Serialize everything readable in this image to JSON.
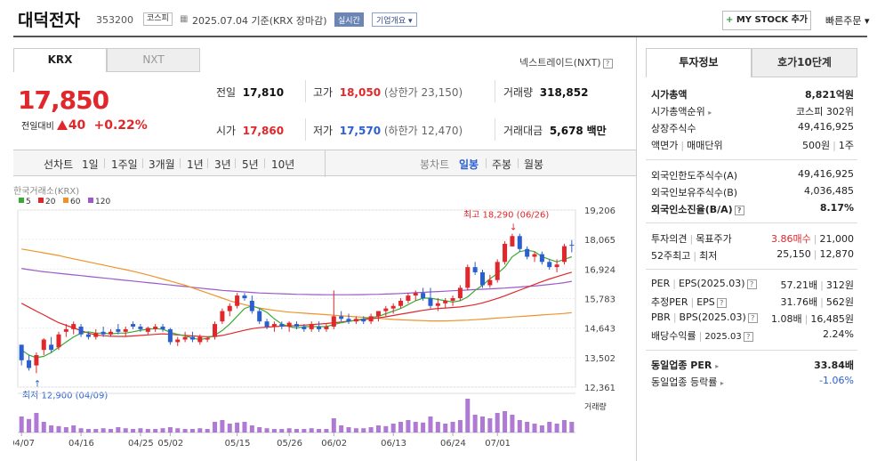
{
  "header": {
    "name": "대덕전자",
    "code": "353200",
    "market": "코스피",
    "date": "2025.07.04 기준(KRX 장마감)",
    "realtime": "실시간",
    "overview": "기업개요 ▾",
    "mystock": "MY STOCK 추가",
    "mystock_plus": "+",
    "quick_order": "빠른주문 ▾"
  },
  "tabs": {
    "krx": "KRX",
    "nxt": "NXT"
  },
  "nxt_link": "넥스트레이드(NXT)",
  "price": {
    "current": "17,850",
    "change_label": "전일대비",
    "change": "40",
    "change_pct": "+0.22%"
  },
  "quote": {
    "prev_label": "전일",
    "prev": "17,810",
    "high_label": "고가",
    "high": "18,050",
    "upper_label": "(상한가 23,150)",
    "volume_label": "거래량",
    "volume": "318,852",
    "open_label": "시가",
    "open": "17,860",
    "low_label": "저가",
    "low": "17,570",
    "lower_label": "(하한가 12,470)",
    "amount_label": "거래대금",
    "amount": "5,678",
    "amount_unit": "백만"
  },
  "chart_toolbar": {
    "line_chart": "선차트",
    "periods": [
      "1일",
      "1주일",
      "3개월",
      "1년",
      "3년",
      "5년",
      "10년"
    ],
    "candle_chart": "봉차트",
    "candle_periods": [
      "일봉",
      "주봉",
      "월봉"
    ],
    "active_candle": "일봉"
  },
  "chart_data": {
    "type": "candlestick",
    "source": "한국거래소(KRX)",
    "legend": [
      {
        "name": "5",
        "color": "#3aaa35"
      },
      {
        "name": "20",
        "color": "#e0272b"
      },
      {
        "name": "60",
        "color": "#f0922b"
      },
      {
        "name": "120",
        "color": "#9b59c9"
      }
    ],
    "y_ticks": [
      "19,206",
      "18,065",
      "16,924",
      "15,783",
      "14,643",
      "13,502",
      "12,361"
    ],
    "ylim": [
      12361,
      19206
    ],
    "x_ticks": [
      "04/07",
      "04/16",
      "04/25",
      "05/02",
      "05/15",
      "05/26",
      "06/02",
      "06/13",
      "06/24",
      "07/01"
    ],
    "max_label": "최고 18,290 (06/26)",
    "min_label": "최저 12,900 (04/09)",
    "volume_label": "거래량",
    "up_color": "#e0272b",
    "down_color": "#2a5fcf",
    "candles": [
      [
        14000,
        14000,
        13200,
        13400
      ],
      [
        13400,
        13600,
        13000,
        13100
      ],
      [
        13200,
        13700,
        12900,
        13600
      ],
      [
        13800,
        14250,
        13600,
        14200
      ],
      [
        14000,
        14300,
        13700,
        13800
      ],
      [
        13900,
        14500,
        13800,
        14400
      ],
      [
        14500,
        14800,
        14300,
        14600
      ],
      [
        14600,
        14900,
        14400,
        14800
      ],
      [
        14700,
        14800,
        14300,
        14400
      ],
      [
        14400,
        14500,
        14200,
        14300
      ],
      [
        14300,
        14600,
        14200,
        14450
      ],
      [
        14500,
        14700,
        14300,
        14400
      ],
      [
        14400,
        14600,
        14300,
        14500
      ],
      [
        14600,
        14800,
        14400,
        14500
      ],
      [
        14500,
        14700,
        14300,
        14600
      ],
      [
        14800,
        14900,
        14600,
        14700
      ],
      [
        14700,
        14800,
        14500,
        14600
      ],
      [
        14500,
        14700,
        14400,
        14650
      ],
      [
        14600,
        14800,
        14500,
        14700
      ],
      [
        14700,
        14800,
        14500,
        14600
      ],
      [
        14600,
        14650,
        14000,
        14100
      ],
      [
        14100,
        14300,
        13950,
        14200
      ],
      [
        14200,
        14500,
        14100,
        14300
      ],
      [
        14300,
        14500,
        14100,
        14200
      ],
      [
        14100,
        14400,
        14000,
        14300
      ],
      [
        14200,
        14300,
        14100,
        14250
      ],
      [
        14300,
        14900,
        14200,
        14800
      ],
      [
        14900,
        15400,
        14800,
        15300
      ],
      [
        15300,
        15600,
        15100,
        15500
      ],
      [
        15500,
        16000,
        15400,
        15900
      ],
      [
        15900,
        16000,
        15700,
        15800
      ],
      [
        15700,
        15900,
        15200,
        15300
      ],
      [
        15300,
        15400,
        14800,
        14900
      ],
      [
        14900,
        15000,
        14600,
        14700
      ],
      [
        14700,
        14900,
        14500,
        14800
      ],
      [
        14800,
        14900,
        14600,
        14700
      ],
      [
        14700,
        14900,
        14500,
        14850
      ],
      [
        14800,
        14900,
        14600,
        14700
      ],
      [
        14700,
        14800,
        14500,
        14600
      ],
      [
        14600,
        14900,
        14500,
        14800
      ],
      [
        14700,
        14900,
        14500,
        14600
      ],
      [
        14600,
        14800,
        14500,
        14700
      ],
      [
        14700,
        16100,
        14600,
        15100
      ],
      [
        15100,
        15300,
        14900,
        15000
      ],
      [
        15000,
        15200,
        14800,
        14900
      ],
      [
        14900,
        15100,
        14800,
        15000
      ],
      [
        15000,
        15100,
        14800,
        14900
      ],
      [
        14900,
        15200,
        14800,
        15100
      ],
      [
        15100,
        15300,
        14900,
        15300
      ],
      [
        15300,
        15500,
        15100,
        15400
      ],
      [
        15400,
        15600,
        15200,
        15500
      ],
      [
        15500,
        15800,
        15400,
        15700
      ],
      [
        15700,
        16000,
        15600,
        15900
      ],
      [
        15900,
        16100,
        15700,
        16000
      ],
      [
        16000,
        16200,
        15700,
        15800
      ],
      [
        15800,
        16200,
        15400,
        15500
      ],
      [
        15500,
        15800,
        15300,
        15600
      ],
      [
        15600,
        15800,
        15400,
        15700
      ],
      [
        15700,
        15900,
        15500,
        15800
      ],
      [
        15800,
        16300,
        15700,
        16200
      ],
      [
        16200,
        17100,
        16100,
        17000
      ],
      [
        17000,
        17200,
        16700,
        16800
      ],
      [
        16800,
        16900,
        16200,
        16300
      ],
      [
        16300,
        16700,
        16200,
        16500
      ],
      [
        16500,
        17300,
        16400,
        17200
      ],
      [
        17200,
        18000,
        17100,
        17900
      ],
      [
        17800,
        18290,
        17800,
        18200
      ],
      [
        18200,
        18290,
        17600,
        17700
      ],
      [
        17700,
        17800,
        17300,
        17400
      ],
      [
        17400,
        17600,
        17200,
        17500
      ],
      [
        17500,
        17600,
        17100,
        17200
      ],
      [
        17200,
        17300,
        16900,
        17000
      ],
      [
        17000,
        17300,
        16800,
        17100
      ],
      [
        17200,
        17900,
        17100,
        17810
      ],
      [
        17860,
        18050,
        17570,
        17850
      ]
    ],
    "ma5": [
      13800,
      13600,
      13500,
      13550,
      13700,
      13900,
      14100,
      14300,
      14450,
      14500,
      14450,
      14450,
      14420,
      14450,
      14450,
      14500,
      14560,
      14600,
      14620,
      14600,
      14480,
      14400,
      14350,
      14250,
      14200,
      14250,
      14370,
      14550,
      14800,
      15100,
      15400,
      15500,
      15400,
      15250,
      15000,
      14800,
      14700,
      14650,
      14700,
      14700,
      14700,
      14700,
      14780,
      14850,
      14900,
      14950,
      15000,
      15050,
      15100,
      15200,
      15300,
      15400,
      15550,
      15700,
      15800,
      15800,
      15750,
      15700,
      15650,
      15700,
      15850,
      16100,
      16300,
      16550,
      16750,
      17000,
      17400,
      17600,
      17650,
      17600,
      17400,
      17300,
      17200,
      17300,
      17400
    ],
    "ma20": [
      15600,
      15450,
      15300,
      15150,
      15000,
      14850,
      14750,
      14650,
      14550,
      14450,
      14380,
      14350,
      14330,
      14320,
      14320,
      14340,
      14360,
      14380,
      14400,
      14420,
      14400,
      14380,
      14360,
      14340,
      14320,
      14310,
      14320,
      14360,
      14420,
      14490,
      14560,
      14620,
      14660,
      14680,
      14700,
      14720,
      14730,
      14740,
      14760,
      14780,
      14800,
      14820,
      14850,
      14880,
      14910,
      14940,
      14970,
      15000,
      15040,
      15080,
      15130,
      15180,
      15230,
      15280,
      15330,
      15370,
      15400,
      15420,
      15440,
      15460,
      15500,
      15550,
      15620,
      15700,
      15790,
      15890,
      16000,
      16110,
      16220,
      16330,
      16440,
      16540,
      16630,
      16720,
      16800
    ],
    "ma60": [
      17700,
      17650,
      17600,
      17550,
      17500,
      17450,
      17380,
      17320,
      17260,
      17200,
      17140,
      17080,
      17020,
      16960,
      16900,
      16840,
      16770,
      16700,
      16620,
      16540,
      16460,
      16380,
      16300,
      16200,
      16100,
      16000,
      15900,
      15800,
      15700,
      15620,
      15550,
      15480,
      15420,
      15370,
      15330,
      15290,
      15260,
      15240,
      15220,
      15200,
      15180,
      15160,
      15140,
      15120,
      15100,
      15080,
      15060,
      15040,
      15020,
      15000,
      14980,
      14960,
      14950,
      14940,
      14930,
      14920,
      14920,
      14920,
      14930,
      14940,
      14950,
      14970,
      14990,
      15010,
      15030,
      15050,
      15070,
      15090,
      15110,
      15130,
      15150,
      15170,
      15190,
      15210,
      15240
    ],
    "ma120": [
      16950,
      16900,
      16860,
      16820,
      16790,
      16760,
      16730,
      16700,
      16670,
      16640,
      16610,
      16580,
      16550,
      16520,
      16490,
      16460,
      16430,
      16400,
      16370,
      16340,
      16310,
      16280,
      16250,
      16220,
      16190,
      16160,
      16130,
      16100,
      16080,
      16060,
      16040,
      16020,
      16000,
      15990,
      15980,
      15970,
      15960,
      15950,
      15945,
      15940,
      15935,
      15930,
      15930,
      15930,
      15930,
      15935,
      15940,
      15945,
      15950,
      15960,
      15970,
      15980,
      15995,
      16010,
      16025,
      16040,
      16055,
      16070,
      16085,
      16100,
      16115,
      16130,
      16145,
      16160,
      16175,
      16190,
      16210,
      16230,
      16250,
      16270,
      16300,
      16330,
      16360,
      16400,
      16450
    ],
    "volume": [
      0.45,
      0.38,
      0.55,
      0.3,
      0.2,
      0.18,
      0.15,
      0.2,
      0.12,
      0.1,
      0.1,
      0.12,
      0.1,
      0.15,
      0.12,
      0.1,
      0.12,
      0.1,
      0.1,
      0.12,
      0.15,
      0.12,
      0.1,
      0.1,
      0.12,
      0.1,
      0.3,
      0.35,
      0.25,
      0.28,
      0.3,
      0.2,
      0.15,
      0.12,
      0.1,
      0.1,
      0.12,
      0.1,
      0.1,
      0.12,
      0.1,
      0.1,
      0.4,
      0.2,
      0.15,
      0.12,
      0.12,
      0.15,
      0.2,
      0.18,
      0.25,
      0.3,
      0.35,
      0.3,
      0.28,
      0.45,
      0.3,
      0.25,
      0.3,
      0.35,
      0.95,
      0.5,
      0.45,
      0.4,
      0.55,
      0.6,
      0.5,
      0.35,
      0.3,
      0.25,
      0.2,
      0.3,
      0.25,
      0.35,
      0.3
    ]
  },
  "right_tabs": {
    "info": "투자정보",
    "hoga": "호가10단계"
  },
  "invest": {
    "mktcap_label": "시가총액",
    "mktcap": "8,821억원",
    "mktcap_rank_label": "시가총액순위",
    "mktcap_rank": "코스피 302위",
    "shares_label": "상장주식수",
    "shares": "49,416,925",
    "face_label": "액면가",
    "unit_label": "매매단위",
    "face": "500원",
    "unit": "1주",
    "foreign_limit_label": "외국인한도주식수(A)",
    "foreign_limit": "49,416,925",
    "foreign_hold_label": "외국인보유주식수(B)",
    "foreign_hold": "4,036,485",
    "foreign_ratio_label": "외국인소진율(B/A)",
    "foreign_ratio": "8.17%",
    "opinion_label": "투자의견",
    "target_label": "목표주가",
    "opinion": "3.86매수",
    "target": "21,000",
    "w52_label": "52주최고",
    "w52_low_label": "최저",
    "w52_high": "25,150",
    "w52_low": "12,870",
    "per_label": "PER",
    "eps_label": "EPS(2025.03)",
    "per": "57.21배",
    "eps": "312원",
    "eper_label": "추정PER",
    "eeps_label": "EPS",
    "eper": "31.76배",
    "eeps": "562원",
    "pbr_label": "PBR",
    "bps_label": "BPS(2025.03)",
    "pbr": "1.08배",
    "bps": "16,485원",
    "div_label": "배당수익률",
    "div_date": "2025.03",
    "div": "2.24%",
    "sector_per_label": "동일업종 PER",
    "sector_per": "33.84배",
    "sector_chg_label": "동일업종 등락률",
    "sector_chg": "-1.06%"
  }
}
